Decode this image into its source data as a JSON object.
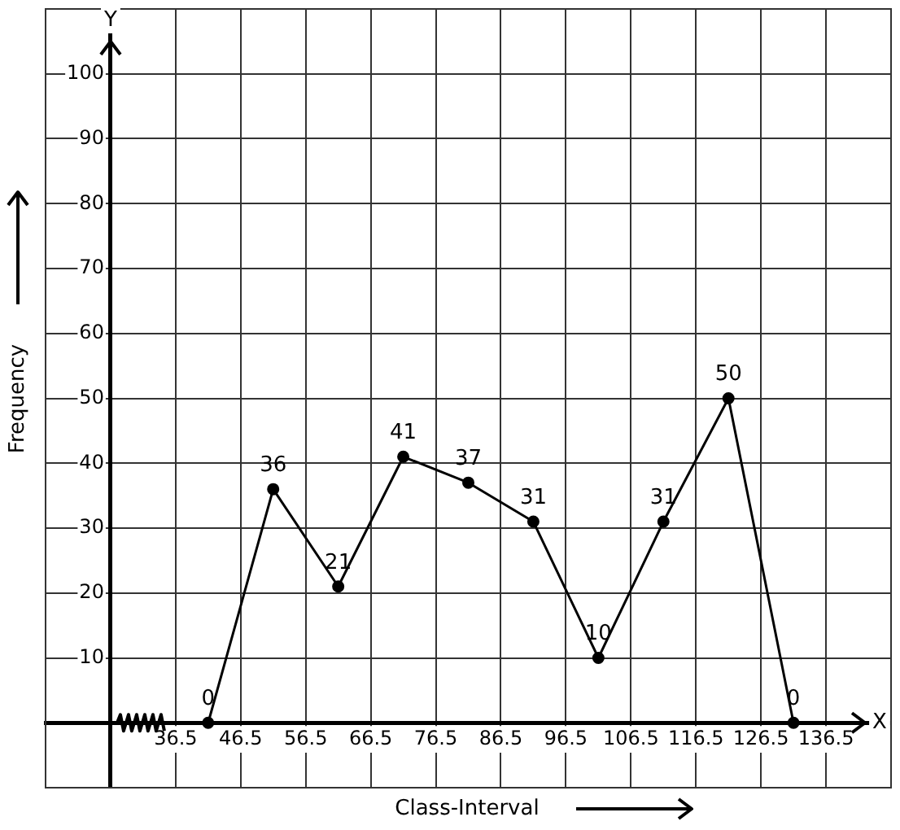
{
  "chart_data": {
    "type": "line",
    "xlabel": "Class-Interval",
    "ylabel": "Frequency",
    "annotations": [
      "X",
      "Y"
    ],
    "x": [
      41.5,
      51.5,
      61.5,
      71.5,
      81.5,
      91.5,
      101.5,
      111.5,
      121.5,
      131.5
    ],
    "values": [
      0,
      36,
      21,
      41,
      37,
      31,
      10,
      31,
      50,
      0
    ],
    "color": "#000000",
    "marker": "circle",
    "line_style": "solid",
    "data_labels": true,
    "grid": true,
    "legend": false,
    "xlim": [
      16.5,
      146.5
    ],
    "xticks": [
      {
        "value": 16.5,
        "label": null
      },
      {
        "value": 26.5,
        "label": null
      },
      36.5,
      46.5,
      56.5,
      66.5,
      76.5,
      86.5,
      96.5,
      106.5,
      116.5,
      126.5,
      136.5,
      {
        "value": 146.5,
        "label": null
      }
    ],
    "ylim": [
      -10,
      110
    ],
    "yticks": [
      {
        "value": -10,
        "label": null
      },
      {
        "value": 0,
        "label": null
      },
      10,
      20,
      30,
      40,
      50,
      60,
      70,
      80,
      90,
      100,
      {
        "value": 110,
        "label": null
      }
    ]
  }
}
